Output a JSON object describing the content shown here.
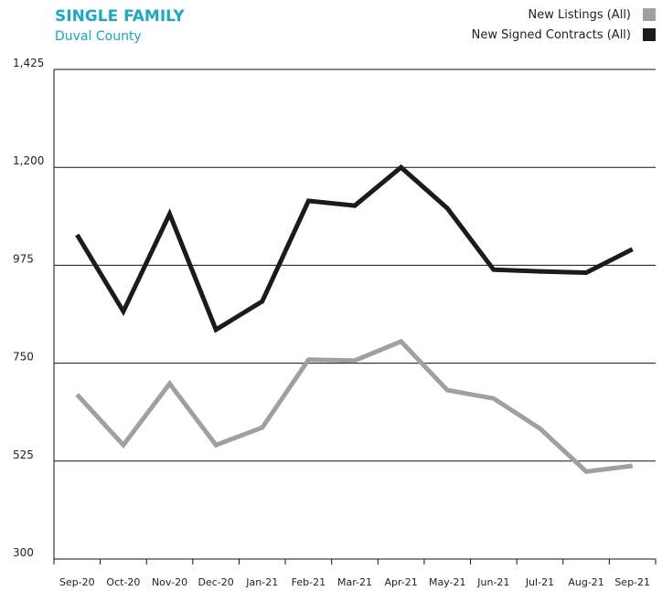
{
  "chart_data": {
    "type": "line",
    "title": "SINGLE FAMILY",
    "subtitle": "Duval County",
    "categories": [
      "Sep-20",
      "Oct-20",
      "Nov-20",
      "Dec-20",
      "Jan-21",
      "Feb-21",
      "Mar-21",
      "Apr-21",
      "May-21",
      "Jun-21",
      "Jul-21",
      "Aug-21",
      "Sep-21"
    ],
    "series": [
      {
        "name": "New Listings (All)",
        "color": "#a0a0a3",
        "values": [
          678,
          562,
          703,
          562,
          602,
          758,
          756,
          800,
          688,
          669,
          600,
          501,
          514
        ]
      },
      {
        "name": "New Signed Contracts (All)",
        "color": "#1a1a1f",
        "values": [
          1045,
          869,
          1093,
          827,
          892,
          1123,
          1112,
          1200,
          1106,
          965,
          961,
          958,
          1012
        ]
      }
    ],
    "ylim": [
      300,
      1425
    ],
    "yticks": [
      300,
      525,
      750,
      975,
      {
        "value": 1200,
        "label": "1,200"
      },
      {
        "value": 1425,
        "label": "1,425"
      }
    ],
    "grid": true,
    "legend": "top-right"
  }
}
